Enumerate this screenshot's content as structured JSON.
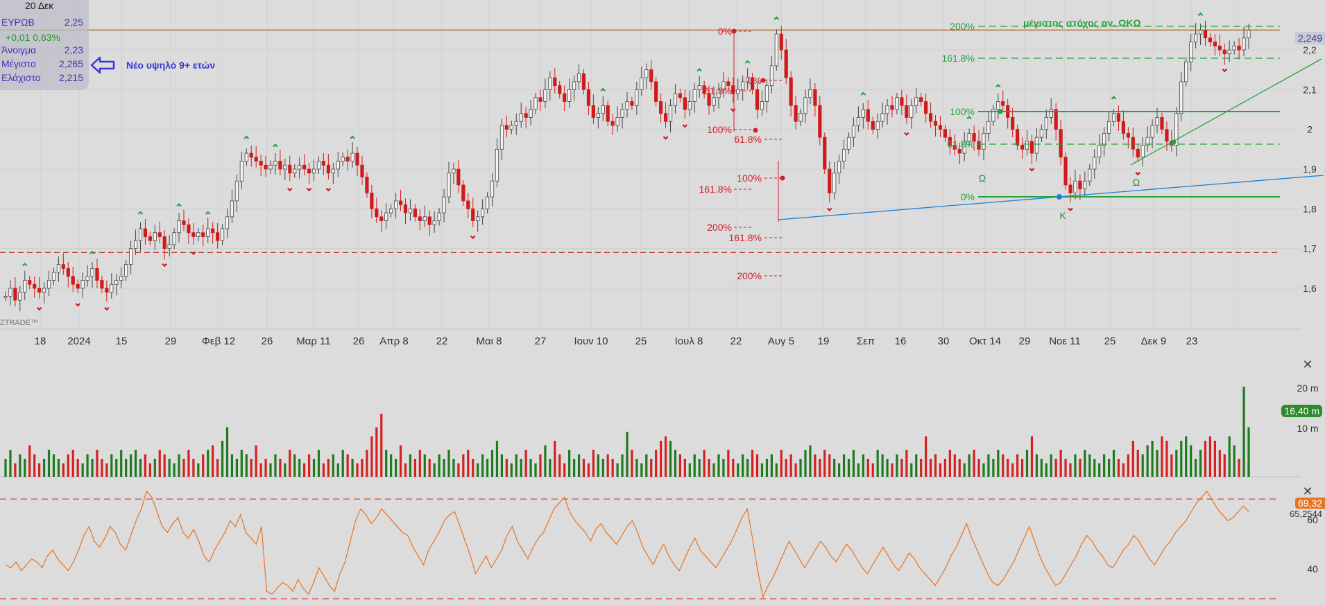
{
  "info_box": {
    "date": "20 Δεκ",
    "symbol_label": "ΕΥΡΩΒ",
    "symbol_value": "2,25",
    "change": "+0,01 0,63%",
    "open_label": "Άνοιγμα",
    "open_value": "2,23",
    "high_label": "Μέγιστο",
    "high_value": "2,265",
    "low_label": "Ελάχιστο",
    "low_value": "2,215"
  },
  "annotation_high": "Νέο υψηλό 9+ ετών",
  "watermark": "ZTRADE™",
  "colors": {
    "background": "#dcdcdc",
    "up": "#2a6b2a",
    "down": "#d11a1a",
    "fib_red": "#d01f2a",
    "fib_green": "#27a33a",
    "trend_blue": "#1f7fd1",
    "resistance": "#b5703a",
    "rsi_line": "#e67322",
    "rsi_band": "#e04444",
    "volume_up": "#1d7a1d",
    "volume_down": "#d42020"
  },
  "price_axis": {
    "ticks": [
      "2,2",
      "2,1",
      "2",
      "1,9",
      "1,8",
      "1,7",
      "1,6"
    ],
    "last_price": "2,249"
  },
  "x_axis": {
    "ticks": [
      "18",
      "2024",
      "15",
      "29",
      "Φεβ 12",
      "26",
      "Μαρ 11",
      "26",
      "Απρ 8",
      "22",
      "Μαι 8",
      "27",
      "Ιουν 10",
      "25",
      "Ιουλ 8",
      "22",
      "Αυγ 5",
      "19",
      "Σεπ",
      "16",
      "30",
      "Οκτ 14",
      "29",
      "Νοε 11",
      "25",
      "Δεκ 9",
      "23"
    ]
  },
  "volume_axis": {
    "ticks": [
      "20 m",
      "10 m"
    ],
    "last": "16,40 m"
  },
  "rsi_axis": {
    "ticks": [
      "60",
      "40"
    ],
    "upper_band": "69,32",
    "last": "65,2544"
  },
  "fib_labels": {
    "red_set_1": [
      "0%",
      "61.8%",
      "100%",
      "161.8%",
      "200%"
    ],
    "red_set_2": [
      "0%",
      "61.8%",
      "100%",
      "161.8%",
      "200%"
    ],
    "green_set": [
      "200%",
      "161.8%",
      "100%",
      "61.8%",
      "0%"
    ],
    "target_text": "μέγιστος στόχος αν. ΩΚΩ",
    "pattern_marks": [
      "Ω",
      "Κ",
      "Ω"
    ]
  },
  "chart_data": {
    "type": "candlestick",
    "x_range": [
      "2023-12-18",
      "2024-12-20"
    ],
    "price_ylim": [
      1.55,
      2.3
    ],
    "resistance_level": 2.25,
    "support_level": 1.69,
    "closes": [
      1.58,
      1.6,
      1.57,
      1.59,
      1.62,
      1.61,
      1.6,
      1.59,
      1.6,
      1.62,
      1.64,
      1.66,
      1.65,
      1.63,
      1.61,
      1.6,
      1.62,
      1.63,
      1.65,
      1.62,
      1.6,
      1.59,
      1.61,
      1.62,
      1.63,
      1.66,
      1.7,
      1.72,
      1.75,
      1.73,
      1.72,
      1.74,
      1.73,
      1.7,
      1.71,
      1.74,
      1.77,
      1.76,
      1.74,
      1.73,
      1.74,
      1.73,
      1.75,
      1.74,
      1.72,
      1.75,
      1.78,
      1.82,
      1.87,
      1.92,
      1.94,
      1.93,
      1.92,
      1.91,
      1.9,
      1.91,
      1.92,
      1.9,
      1.91,
      1.89,
      1.9,
      1.91,
      1.9,
      1.89,
      1.9,
      1.92,
      1.91,
      1.89,
      1.9,
      1.92,
      1.93,
      1.92,
      1.94,
      1.91,
      1.88,
      1.84,
      1.8,
      1.78,
      1.77,
      1.79,
      1.8,
      1.82,
      1.81,
      1.79,
      1.8,
      1.78,
      1.77,
      1.78,
      1.76,
      1.77,
      1.79,
      1.83,
      1.89,
      1.9,
      1.86,
      1.82,
      1.8,
      1.77,
      1.78,
      1.8,
      1.83,
      1.87,
      1.95,
      2.01,
      2.0,
      2.01,
      2.02,
      2.04,
      2.03,
      2.05,
      2.08,
      2.07,
      2.1,
      2.13,
      2.11,
      2.09,
      2.07,
      2.1,
      2.12,
      2.14,
      2.1,
      2.06,
      2.03,
      2.04,
      2.06,
      2.02,
      2.01,
      2.03,
      2.05,
      2.07,
      2.06,
      2.1,
      2.13,
      2.15,
      2.12,
      2.07,
      2.04,
      2.02,
      2.06,
      2.09,
      2.08,
      2.05,
      2.07,
      2.1,
      2.11,
      2.09,
      2.06,
      2.08,
      2.1,
      2.12,
      2.11,
      2.09,
      2.1,
      2.12,
      2.13,
      2.1,
      2.05,
      2.07,
      2.11,
      2.16,
      2.24,
      2.2,
      2.13,
      2.06,
      2.02,
      2.04,
      2.08,
      2.1,
      2.06,
      1.98,
      1.9,
      1.84,
      1.89,
      1.92,
      1.95,
      1.98,
      2.01,
      2.03,
      2.05,
      2.02,
      2.0,
      2.02,
      2.04,
      2.06,
      2.05,
      2.08,
      2.06,
      2.03,
      2.06,
      2.08,
      2.07,
      2.04,
      2.02,
      2.01,
      2.0,
      1.98,
      1.96,
      1.95,
      1.94,
      1.97,
      1.99,
      1.97,
      1.95,
      1.99,
      2.02,
      2.05,
      2.07,
      2.06,
      2.03,
      2.0,
      1.96,
      1.95,
      1.97,
      1.94,
      1.98,
      2.0,
      2.03,
      2.05,
      2.0,
      1.93,
      1.86,
      1.84,
      1.87,
      1.85,
      1.87,
      1.9,
      1.93,
      1.96,
      1.99,
      2.02,
      2.04,
      2.02,
      1.99,
      1.98,
      1.95,
      1.93,
      1.96,
      1.98,
      2.01,
      2.03,
      2.0,
      1.97,
      1.96,
      2.04,
      2.12,
      2.17,
      2.22,
      2.24,
      2.25,
      2.23,
      2.22,
      2.21,
      2.2,
      2.19,
      2.2,
      2.21,
      2.2,
      2.23,
      2.25
    ]
  },
  "volume_data": [
    0.4,
    0.6,
    0.3,
    0.5,
    0.4,
    0.7,
    0.5,
    0.3,
    0.4,
    0.6,
    0.5,
    0.4,
    0.3,
    0.5,
    0.6,
    0.4,
    0.3,
    0.5,
    0.4,
    0.6,
    0.4,
    0.3,
    0.5,
    0.4,
    0.6,
    0.4,
    0.5,
    0.6,
    0.4,
    0.5,
    0.3,
    0.4,
    0.6,
    0.5,
    0.4,
    0.3,
    0.5,
    0.4,
    0.6,
    0.4,
    0.3,
    0.5,
    0.6,
    0.7,
    0.4,
    0.8,
    1.1,
    0.5,
    0.4,
    0.6,
    0.5,
    0.4,
    0.7,
    0.3,
    0.4,
    0.3,
    0.5,
    0.4,
    0.3,
    0.6,
    0.5,
    0.4,
    0.3,
    0.5,
    0.4,
    0.6,
    0.3,
    0.4,
    0.5,
    0.3,
    0.6,
    0.5,
    0.4,
    0.3,
    0.4,
    0.6,
    0.9,
    1.1,
    1.4,
    0.6,
    0.5,
    0.4,
    0.7,
    0.3,
    0.5,
    0.4,
    0.6,
    0.5,
    0.4,
    0.3,
    0.5,
    0.4,
    0.6,
    0.4,
    0.3,
    0.5,
    0.6,
    0.4,
    0.3,
    0.5,
    0.4,
    0.6,
    0.8,
    0.5,
    0.4,
    0.3,
    0.5,
    0.4,
    0.6,
    0.4,
    0.3,
    0.5,
    0.7,
    0.4,
    0.8,
    0.5,
    0.3,
    0.6,
    0.4,
    0.5,
    0.4,
    0.3,
    0.6,
    0.5,
    0.4,
    0.5,
    0.4,
    0.3,
    0.5,
    1.0,
    0.6,
    0.4,
    0.3,
    0.5,
    0.4,
    0.6,
    0.8,
    0.9,
    0.8,
    0.6,
    0.5,
    0.4,
    0.3,
    0.5,
    0.4,
    0.6,
    0.4,
    0.3,
    0.5,
    0.4,
    0.6,
    0.4,
    0.3,
    0.5,
    0.4,
    0.6,
    0.5,
    0.3,
    0.4,
    0.5,
    0.3,
    0.6,
    0.4,
    0.5,
    0.3,
    0.4,
    0.6,
    0.7,
    0.5,
    0.4,
    0.6,
    0.5,
    0.4,
    0.3,
    0.5,
    0.4,
    0.6,
    0.3,
    0.5,
    0.4,
    0.3,
    0.6,
    0.5,
    0.4,
    0.3,
    0.5,
    0.4,
    0.6,
    0.3,
    0.5,
    0.4,
    0.9,
    0.4,
    0.5,
    0.3,
    0.4,
    0.6,
    0.5,
    0.4,
    0.3,
    0.5,
    0.6,
    0.4,
    0.3,
    0.5,
    0.4,
    0.6,
    0.5,
    0.4,
    0.3,
    0.5,
    0.4,
    0.6,
    0.9,
    0.5,
    0.4,
    0.3,
    0.5,
    0.4,
    0.6,
    0.4,
    0.3,
    0.5,
    0.4,
    0.6,
    0.5,
    0.4,
    0.3,
    0.5,
    0.4,
    0.6,
    0.4,
    0.3,
    0.5,
    0.8,
    0.6,
    0.5,
    0.7,
    0.8,
    0.6,
    0.9,
    0.8,
    0.5,
    0.6,
    0.8,
    0.9,
    0.7,
    0.4,
    0.6,
    0.8,
    0.9,
    0.8,
    0.6,
    0.5,
    0.9,
    0.7,
    0.4,
    2.0,
    0.3,
    1.1
  ],
  "rsi_data": [
    47,
    46,
    48,
    45,
    47,
    49,
    48,
    46,
    50,
    52,
    49,
    47,
    45,
    48,
    52,
    57,
    60,
    55,
    53,
    56,
    60,
    58,
    54,
    52,
    57,
    62,
    66,
    72,
    70,
    65,
    60,
    58,
    61,
    63,
    58,
    56,
    59,
    55,
    50,
    48,
    52,
    55,
    58,
    62,
    60,
    64,
    58,
    56,
    54,
    60,
    38,
    37,
    39,
    41,
    40,
    38,
    42,
    39,
    37,
    41,
    46,
    43,
    40,
    38,
    44,
    48,
    55,
    62,
    66,
    64,
    61,
    63,
    66,
    64,
    62,
    60,
    58,
    57,
    53,
    50,
    47,
    52,
    55,
    58,
    62,
    64,
    65,
    60,
    55,
    50,
    44,
    47,
    50,
    46,
    49,
    52,
    57,
    60,
    55,
    52,
    49,
    53,
    56,
    58,
    62,
    66,
    68,
    70,
    65,
    62,
    60,
    58,
    55,
    59,
    61,
    58,
    56,
    54,
    57,
    60,
    62,
    58,
    53,
    50,
    47,
    51,
    54,
    50,
    47,
    45,
    49,
    53,
    56,
    52,
    50,
    48,
    46,
    49,
    52,
    55,
    59,
    63,
    66,
    56,
    45,
    36,
    40,
    43,
    47,
    51,
    55,
    52,
    49,
    46,
    49,
    52,
    55,
    53,
    50,
    48,
    51,
    54,
    52,
    49,
    46,
    44,
    47,
    50,
    53,
    50,
    47,
    45,
    48,
    51,
    49,
    46,
    44,
    42,
    40,
    43,
    46,
    50,
    53,
    57,
    61,
    56,
    52,
    48,
    44,
    41,
    40,
    42,
    45,
    48,
    52,
    56,
    60,
    55,
    50,
    46,
    43,
    40,
    41,
    44,
    47,
    50,
    54,
    57,
    55,
    52,
    50,
    47,
    46,
    49,
    52,
    54,
    57,
    55,
    52,
    49,
    47,
    50,
    53,
    55,
    58,
    60,
    62,
    65,
    68,
    70,
    72,
    69,
    66,
    64,
    62,
    63,
    65,
    67,
    65
  ],
  "rsi_ylim": [
    35,
    75
  ]
}
